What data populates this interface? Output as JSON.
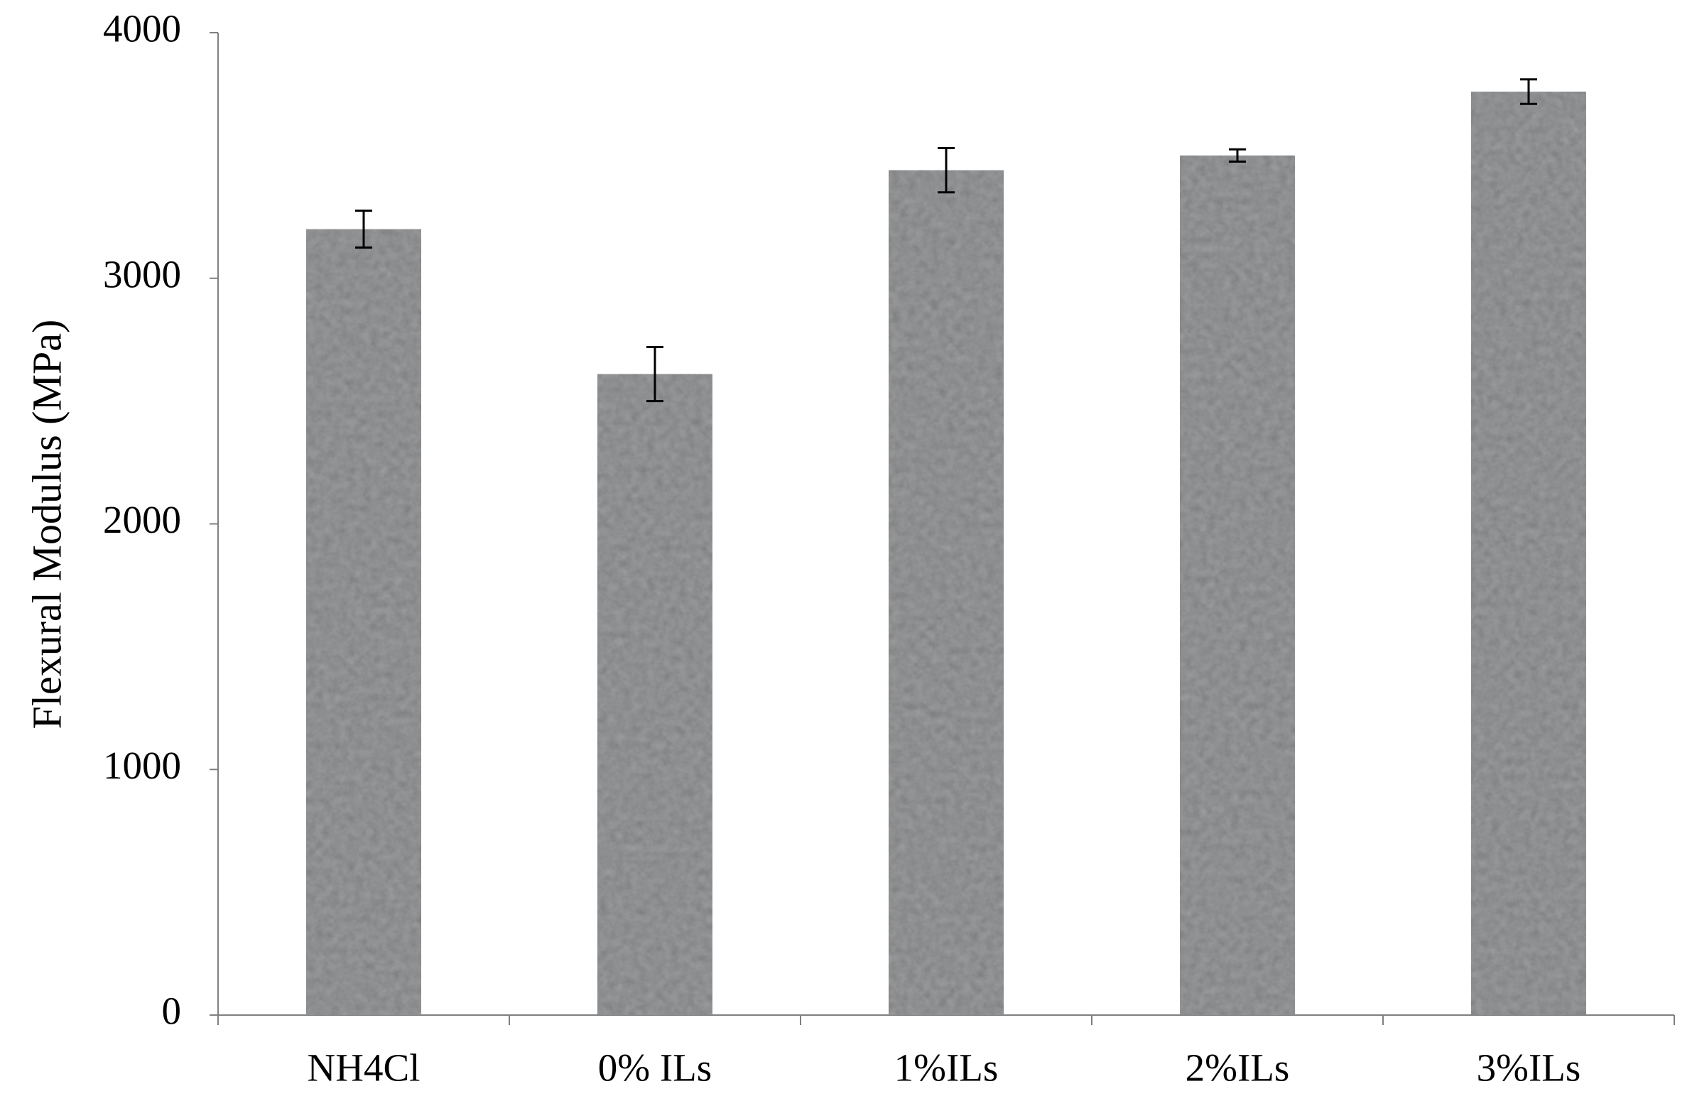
{
  "chart_data": {
    "type": "bar",
    "y_label": "Flexural Modulus (MPa)",
    "categories": [
      "NH4Cl",
      "0% ILs",
      "1%ILs",
      "2%ILs",
      "3%ILs"
    ],
    "values": [
      3200,
      2610,
      3440,
      3500,
      3760
    ],
    "errors": [
      75,
      110,
      90,
      25,
      50
    ],
    "color": "#a3a5a7",
    "ylim": [
      0,
      4000
    ],
    "yticks": [
      0,
      1000,
      2000,
      3000,
      4000
    ],
    "grid": false
  }
}
